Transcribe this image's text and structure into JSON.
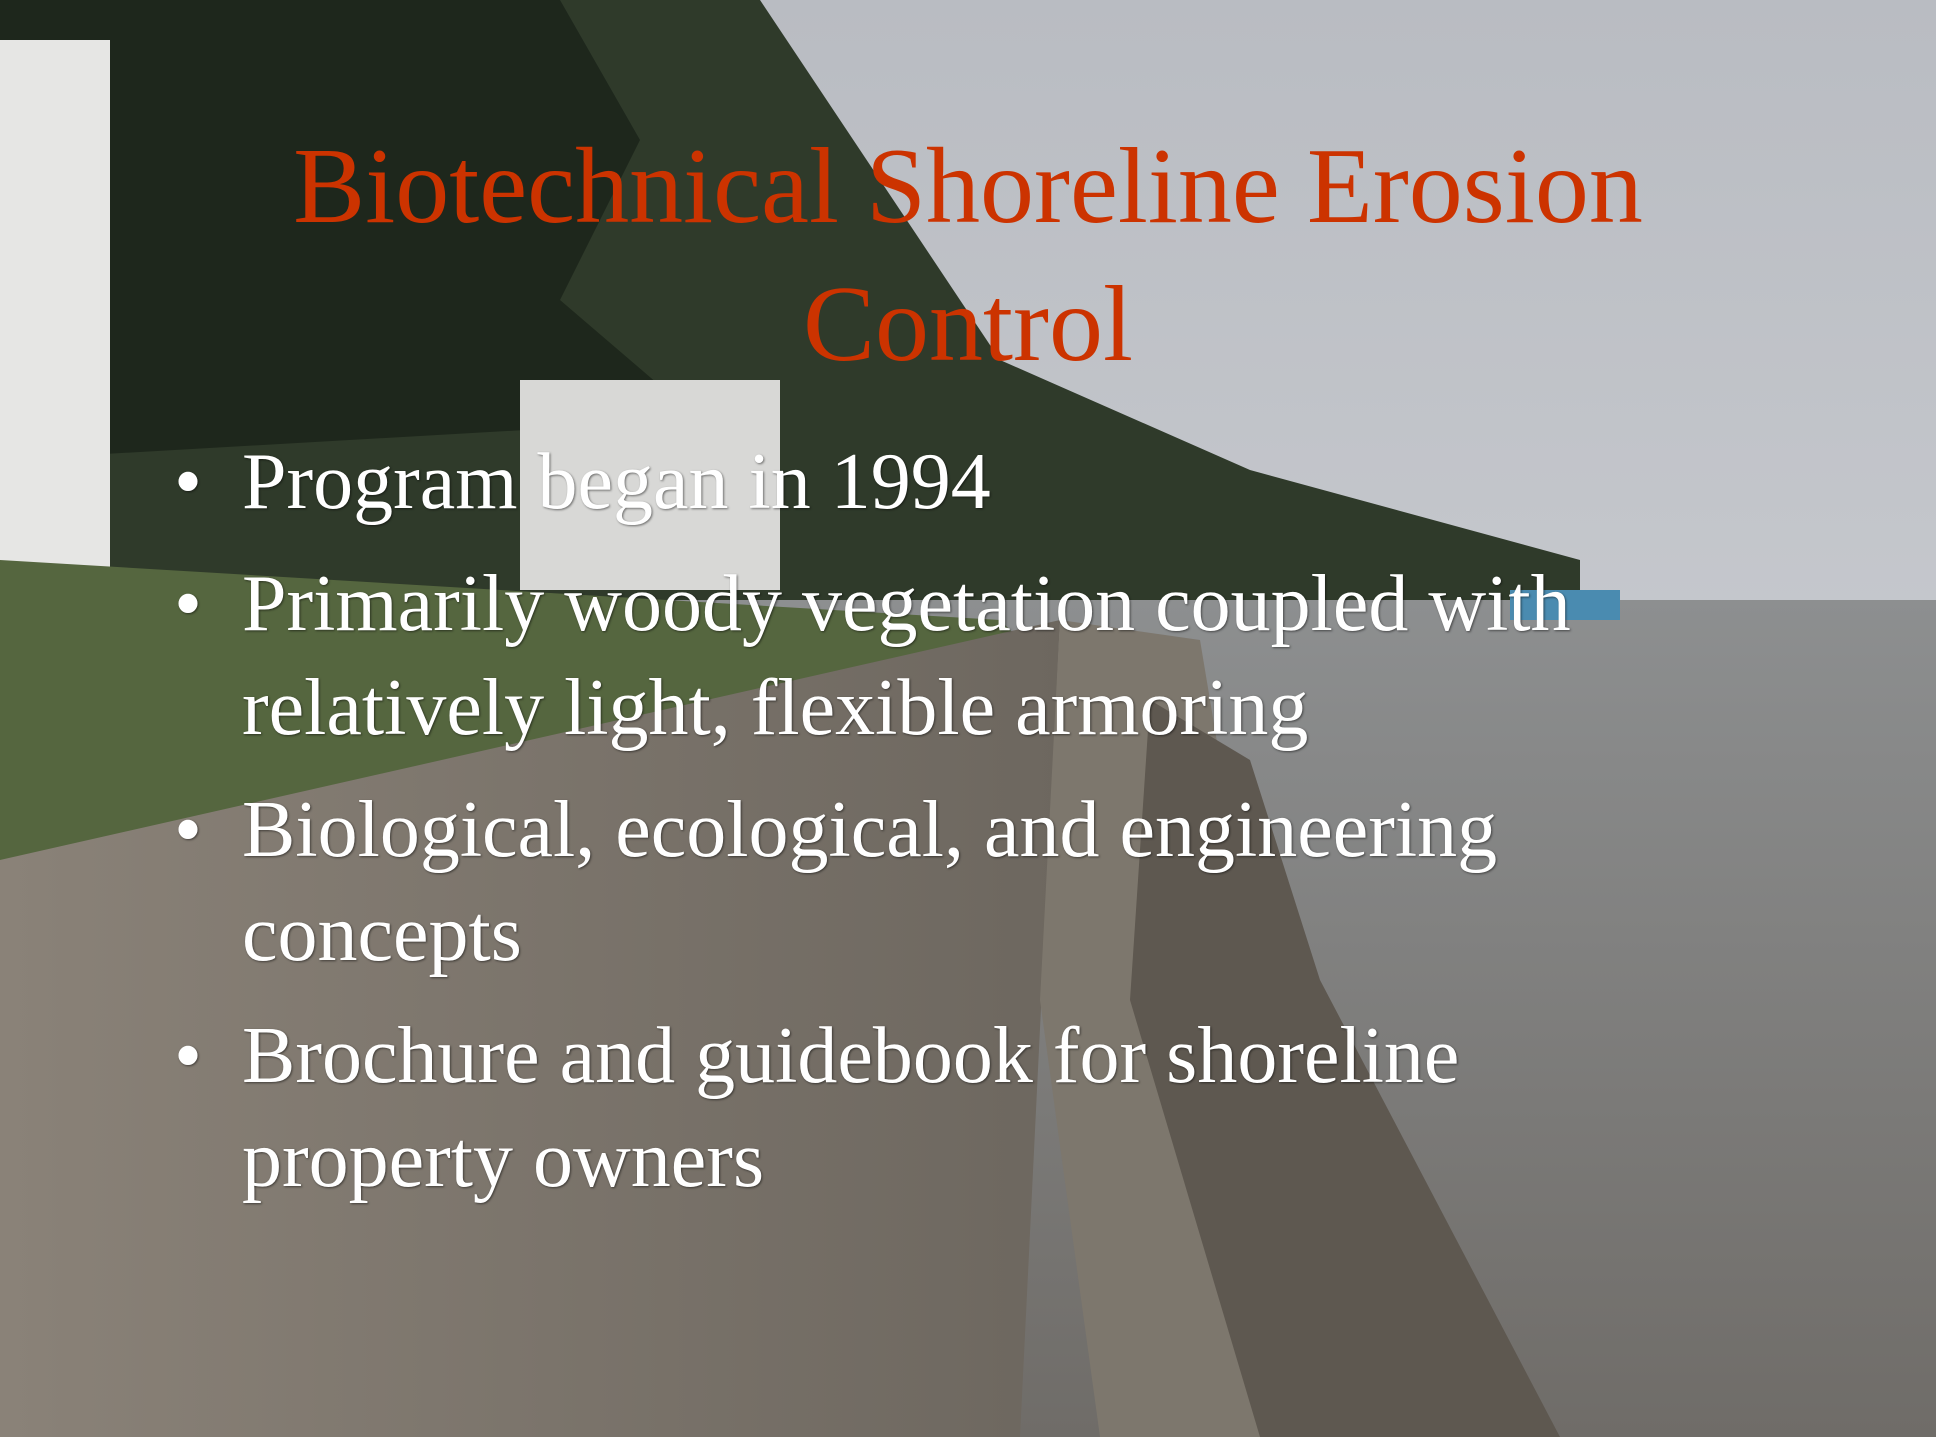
{
  "slide": {
    "title": "Biotechnical Shoreline Erosion Control",
    "bullets": [
      "Program began in 1994",
      "Primarily woody vegetation coupled with relatively light, flexible armoring",
      "Biological, ecological, and engineering concepts",
      "Brochure and guidebook for shoreline property owners"
    ]
  }
}
